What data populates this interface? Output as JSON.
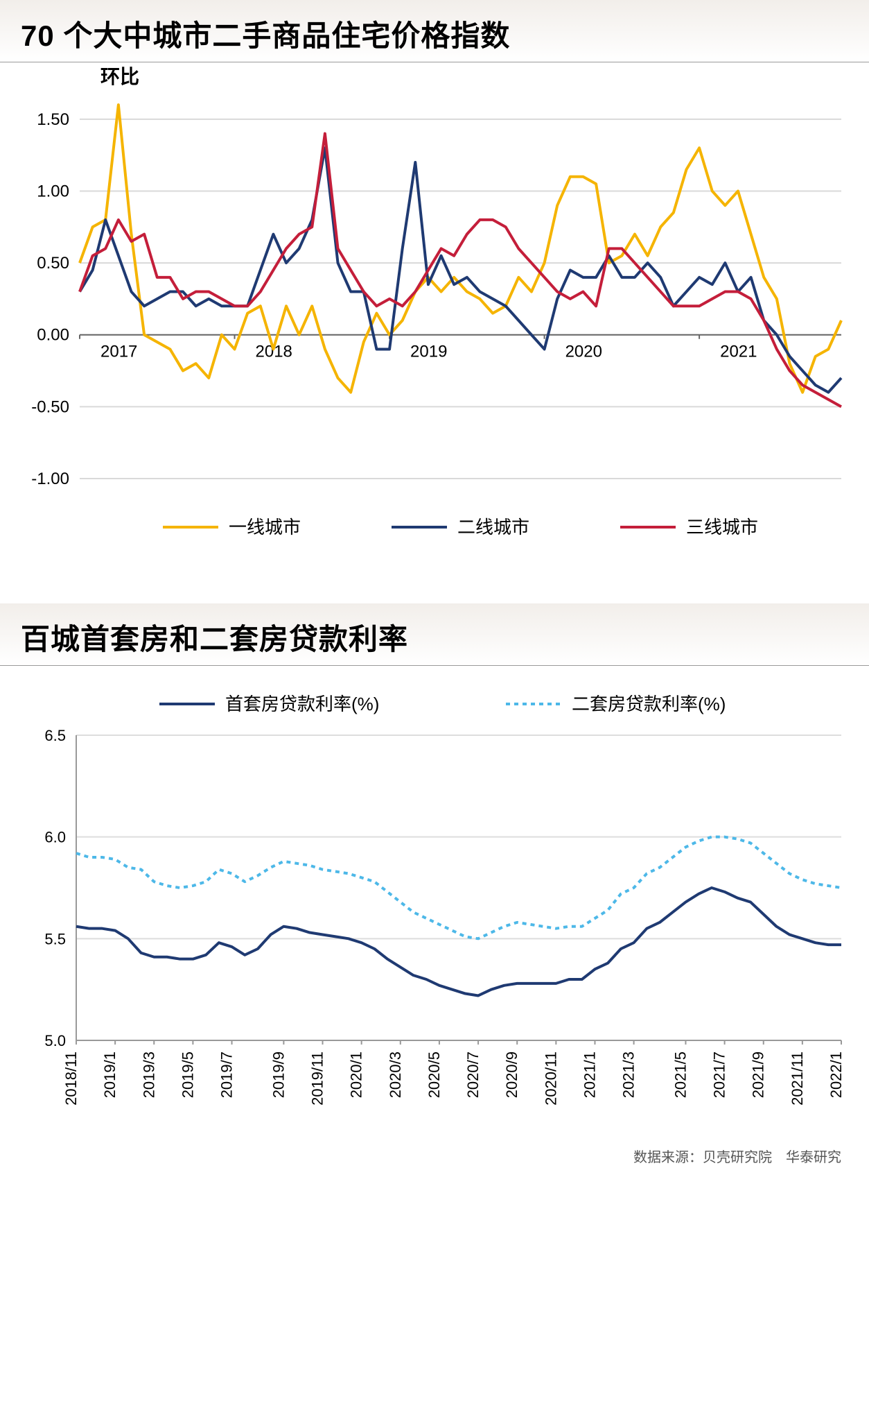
{
  "chart1": {
    "title": "70 个大中城市二手商品住宅价格指数",
    "subtitle": "环比",
    "type": "line",
    "ylabel": "",
    "ylim": [
      -1.0,
      1.75
    ],
    "yticks": [
      -1.0,
      -0.5,
      0.0,
      0.5,
      1.0,
      1.5
    ],
    "ytick_labels": [
      "-1.00",
      "-0.50",
      "0.00",
      "0.50",
      "1.00",
      "1.50"
    ],
    "x_major_ticks": [
      0,
      12,
      24,
      36,
      48
    ],
    "x_major_labels": [
      "2017",
      "2018",
      "2019",
      "2020",
      "2021"
    ],
    "background_color": "#ffffff",
    "grid_color": "#d9d9d9",
    "axis_color": "#666666",
    "line_width": 4,
    "title_fontsize": 42,
    "tick_fontsize": 24,
    "legend_fontsize": 26,
    "series": [
      {
        "name": "一线城市",
        "color": "#f5b400",
        "values": [
          0.5,
          0.75,
          0.8,
          1.6,
          0.7,
          0.0,
          -0.05,
          -0.1,
          -0.25,
          -0.2,
          -0.3,
          0.0,
          -0.1,
          0.15,
          0.2,
          -0.1,
          0.2,
          0.0,
          0.2,
          -0.1,
          -0.3,
          -0.4,
          -0.05,
          0.15,
          0.0,
          0.1,
          0.3,
          0.4,
          0.3,
          0.4,
          0.3,
          0.25,
          0.15,
          0.2,
          0.4,
          0.3,
          0.5,
          0.9,
          1.1,
          1.1,
          1.05,
          0.5,
          0.55,
          0.7,
          0.55,
          0.75,
          0.85,
          1.15,
          1.3,
          1.0,
          0.9,
          1.0,
          0.7,
          0.4,
          0.25,
          -0.2,
          -0.4,
          -0.15,
          -0.1,
          0.1
        ]
      },
      {
        "name": "二线城市",
        "color": "#1f3a72",
        "values": [
          0.3,
          0.45,
          0.8,
          0.55,
          0.3,
          0.2,
          0.25,
          0.3,
          0.3,
          0.2,
          0.25,
          0.2,
          0.2,
          0.2,
          0.45,
          0.7,
          0.5,
          0.6,
          0.8,
          1.3,
          0.5,
          0.3,
          0.3,
          -0.1,
          -0.1,
          0.6,
          1.2,
          0.35,
          0.55,
          0.35,
          0.4,
          0.3,
          0.25,
          0.2,
          0.1,
          0.0,
          -0.1,
          0.25,
          0.45,
          0.4,
          0.4,
          0.55,
          0.4,
          0.4,
          0.5,
          0.4,
          0.2,
          0.3,
          0.4,
          0.35,
          0.5,
          0.3,
          0.4,
          0.1,
          0.0,
          -0.15,
          -0.25,
          -0.35,
          -0.4,
          -0.3
        ]
      },
      {
        "name": "三线城市",
        "color": "#c41e3a",
        "values": [
          0.3,
          0.55,
          0.6,
          0.8,
          0.65,
          0.7,
          0.4,
          0.4,
          0.25,
          0.3,
          0.3,
          0.25,
          0.2,
          0.2,
          0.3,
          0.45,
          0.6,
          0.7,
          0.75,
          1.4,
          0.6,
          0.45,
          0.3,
          0.2,
          0.25,
          0.2,
          0.3,
          0.45,
          0.6,
          0.55,
          0.7,
          0.8,
          0.8,
          0.75,
          0.6,
          0.5,
          0.4,
          0.3,
          0.25,
          0.3,
          0.2,
          0.6,
          0.6,
          0.5,
          0.4,
          0.3,
          0.2,
          0.2,
          0.2,
          0.25,
          0.3,
          0.3,
          0.25,
          0.1,
          -0.1,
          -0.25,
          -0.35,
          -0.4,
          -0.45,
          -0.5
        ]
      }
    ]
  },
  "chart2": {
    "title": "百城首套房和二套房贷款利率",
    "type": "line",
    "ylim": [
      5.0,
      6.5
    ],
    "yticks": [
      5.0,
      5.5,
      6.0,
      6.5
    ],
    "ytick_labels": [
      "5.0",
      "5.5",
      "6.0",
      "6.5"
    ],
    "xticks": [
      "2018/11",
      "2019/1",
      "2019/3",
      "2019/5",
      "2019/7",
      "2019/9",
      "2019/11",
      "2020/1",
      "2020/3",
      "2020/5",
      "2020/7",
      "2020/9",
      "2020/11",
      "2021/1",
      "2021/3",
      "2021/5",
      "2021/7",
      "2021/9",
      "2021/11",
      "2022/1"
    ],
    "background_color": "#ffffff",
    "grid_color": "#dddddd",
    "axis_color": "#999999",
    "line_width": 4,
    "title_fontsize": 42,
    "tick_fontsize": 22,
    "legend_fontsize": 26,
    "series": [
      {
        "name": "首套房贷款利率(%)",
        "color": "#1f3a72",
        "dash": "none",
        "values": [
          5.56,
          5.55,
          5.55,
          5.54,
          5.5,
          5.43,
          5.41,
          5.41,
          5.4,
          5.4,
          5.42,
          5.48,
          5.46,
          5.42,
          5.45,
          5.52,
          5.56,
          5.55,
          5.53,
          5.52,
          5.51,
          5.5,
          5.48,
          5.45,
          5.4,
          5.36,
          5.32,
          5.3,
          5.27,
          5.25,
          5.23,
          5.22,
          5.25,
          5.27,
          5.28,
          5.28,
          5.28,
          5.28,
          5.3,
          5.3,
          5.35,
          5.38,
          5.45,
          5.48,
          5.55,
          5.58,
          5.63,
          5.68,
          5.72,
          5.75,
          5.73,
          5.7,
          5.68,
          5.62,
          5.56,
          5.52,
          5.5,
          5.48,
          5.47,
          5.47
        ]
      },
      {
        "name": "二套房贷款利率(%)",
        "color": "#4db8e8",
        "dash": "6,6",
        "values": [
          5.92,
          5.9,
          5.9,
          5.89,
          5.85,
          5.84,
          5.78,
          5.76,
          5.75,
          5.76,
          5.78,
          5.84,
          5.82,
          5.78,
          5.81,
          5.85,
          5.88,
          5.87,
          5.86,
          5.84,
          5.83,
          5.82,
          5.8,
          5.78,
          5.73,
          5.68,
          5.63,
          5.6,
          5.57,
          5.54,
          5.51,
          5.5,
          5.53,
          5.56,
          5.58,
          5.57,
          5.56,
          5.55,
          5.56,
          5.56,
          5.6,
          5.64,
          5.72,
          5.75,
          5.82,
          5.85,
          5.9,
          5.95,
          5.98,
          6.0,
          6.0,
          5.99,
          5.97,
          5.92,
          5.87,
          5.82,
          5.79,
          5.77,
          5.76,
          5.75
        ]
      }
    ]
  },
  "source": "数据来源：贝壳研究院　华泰研究"
}
